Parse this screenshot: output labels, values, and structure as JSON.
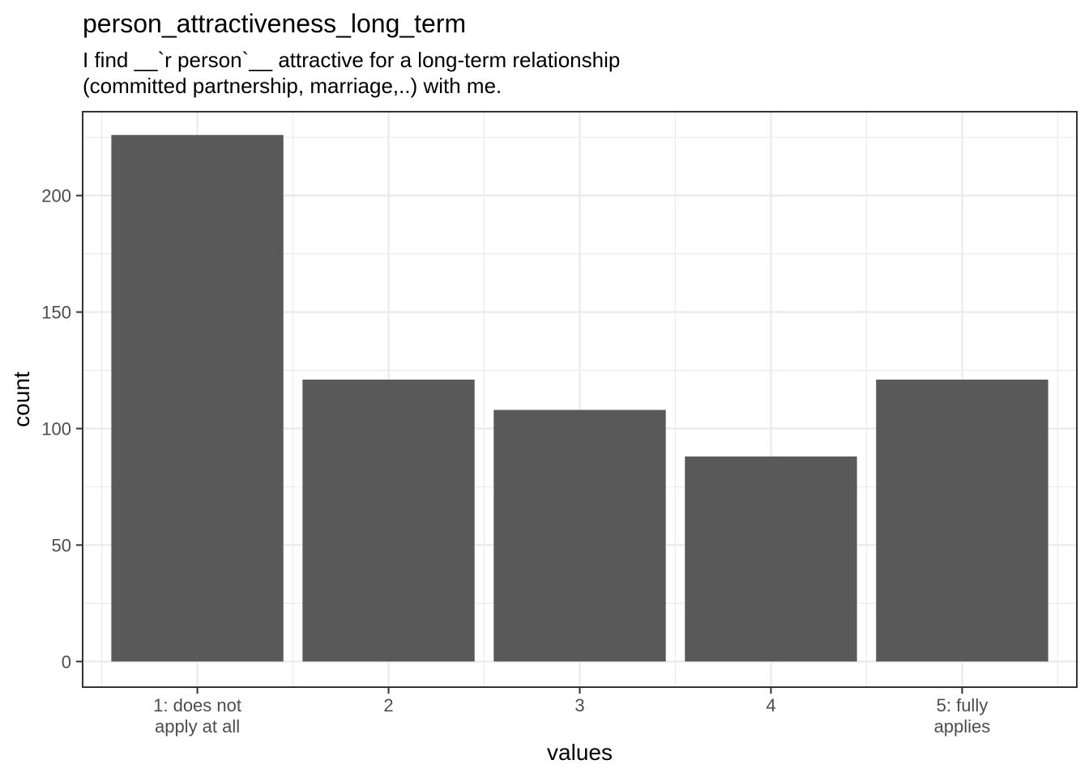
{
  "chart_data": {
    "type": "bar",
    "title": "person_attractiveness_long_term",
    "subtitle_lines": [
      "I find __`r person`__ attractive for a long-term relationship",
      "(committed partnership, marriage,..) with me."
    ],
    "categories": [
      [
        "1: does not",
        "apply at all"
      ],
      [
        "2"
      ],
      [
        "3"
      ],
      [
        "4"
      ],
      [
        "5: fully",
        "applies"
      ]
    ],
    "values": [
      226,
      121,
      108,
      88,
      121
    ],
    "xlabel": "values",
    "ylabel": "count",
    "yticks": [
      0,
      50,
      100,
      150,
      200
    ],
    "ylim": [
      -11,
      236
    ],
    "grid": true,
    "bar_color": "#595959",
    "grid_color": "#ebebeb",
    "panel_border_color": "#333333"
  }
}
